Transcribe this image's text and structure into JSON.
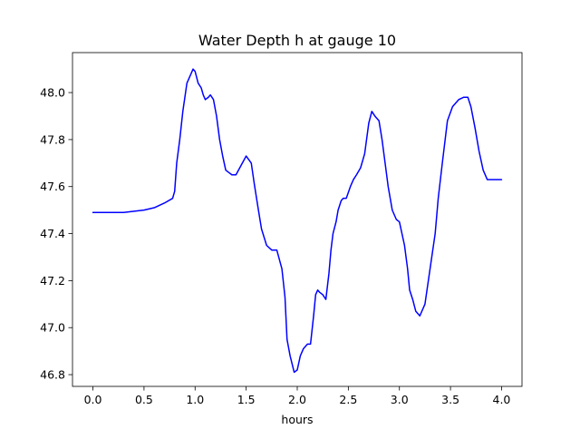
{
  "chart_data": {
    "type": "line",
    "title": "Water Depth h at gauge 10",
    "xlabel": "hours",
    "ylabel": "",
    "xlim": [
      -0.2,
      4.2
    ],
    "ylim": [
      46.75,
      48.17
    ],
    "xticks": [
      0.0,
      0.5,
      1.0,
      1.5,
      2.0,
      2.5,
      3.0,
      3.5,
      4.0
    ],
    "xtick_labels": [
      "0.0",
      "0.5",
      "1.0",
      "1.5",
      "2.0",
      "2.5",
      "3.0",
      "3.5",
      "4.0"
    ],
    "yticks": [
      46.8,
      47.0,
      47.2,
      47.4,
      47.6,
      47.8,
      48.0
    ],
    "ytick_labels": [
      "46.8",
      "47.0",
      "47.2",
      "47.4",
      "47.6",
      "47.8",
      "48.0"
    ],
    "grid": false,
    "series": [
      {
        "color": "#0000ff",
        "x": [
          0.0,
          0.3,
          0.5,
          0.6,
          0.7,
          0.78,
          0.8,
          0.82,
          0.85,
          0.88,
          0.92,
          0.95,
          0.98,
          1.0,
          1.03,
          1.06,
          1.08,
          1.1,
          1.13,
          1.15,
          1.18,
          1.21,
          1.24,
          1.27,
          1.3,
          1.33,
          1.36,
          1.4,
          1.45,
          1.5,
          1.55,
          1.58,
          1.62,
          1.65,
          1.7,
          1.75,
          1.8,
          1.85,
          1.88,
          1.9,
          1.93,
          1.97,
          2.0,
          2.03,
          2.06,
          2.1,
          2.13,
          2.16,
          2.18,
          2.2,
          2.22,
          2.25,
          2.28,
          2.31,
          2.33,
          2.35,
          2.38,
          2.4,
          2.43,
          2.45,
          2.48,
          2.52,
          2.55,
          2.58,
          2.62,
          2.66,
          2.7,
          2.73,
          2.76,
          2.8,
          2.83,
          2.86,
          2.89,
          2.93,
          2.97,
          3.0,
          3.05,
          3.08,
          3.1,
          3.13,
          3.16,
          3.2,
          3.25,
          3.3,
          3.35,
          3.38,
          3.42,
          3.47,
          3.52,
          3.58,
          3.63,
          3.67,
          3.7,
          3.74,
          3.78,
          3.82,
          3.86,
          3.9,
          3.93,
          3.96,
          4.0
        ],
        "y": [
          47.49,
          47.49,
          47.5,
          47.51,
          47.53,
          47.55,
          47.58,
          47.7,
          47.8,
          47.92,
          48.04,
          48.07,
          48.1,
          48.09,
          48.04,
          48.02,
          47.99,
          47.97,
          47.98,
          47.99,
          47.97,
          47.9,
          47.8,
          47.73,
          47.67,
          47.66,
          47.65,
          47.65,
          47.69,
          47.73,
          47.7,
          47.61,
          47.5,
          47.42,
          47.35,
          47.33,
          47.33,
          47.25,
          47.13,
          46.95,
          46.88,
          46.81,
          46.82,
          46.88,
          46.91,
          46.93,
          46.93,
          47.05,
          47.14,
          47.16,
          47.15,
          47.14,
          47.12,
          47.23,
          47.33,
          47.4,
          47.45,
          47.5,
          47.54,
          47.55,
          47.55,
          47.6,
          47.63,
          47.65,
          47.68,
          47.74,
          47.87,
          47.92,
          47.9,
          47.88,
          47.8,
          47.7,
          47.6,
          47.5,
          47.46,
          47.45,
          47.35,
          47.25,
          47.16,
          47.12,
          47.07,
          47.05,
          47.1,
          47.25,
          47.4,
          47.55,
          47.7,
          47.88,
          47.94,
          47.97,
          47.98,
          47.98,
          47.94,
          47.85,
          47.75,
          47.67,
          47.63,
          47.63,
          47.63,
          47.63,
          47.63
        ]
      }
    ]
  }
}
